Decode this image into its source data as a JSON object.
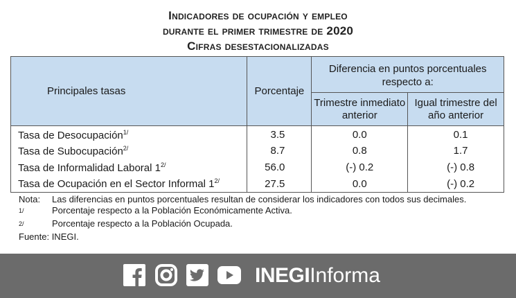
{
  "title": {
    "line1": "Indicadores de ocupación y empleo",
    "line2": "durante el primer trimestre de 2020",
    "line3": "Cifras desestacionalizadas"
  },
  "table": {
    "headers": {
      "tasas": "Principales tasas",
      "porcentaje": "Porcentaje",
      "diferencia": "Diferencia en puntos porcentuales respecto a:",
      "trimestre": "Trimestre inmediato anterior",
      "igual": "Igual trimestre del año anterior"
    },
    "rows": [
      {
        "name": "Tasa de Desocupación",
        "note": "1/",
        "pct": "3.5",
        "trim": "0.0",
        "igual": "0.1"
      },
      {
        "name": "Tasa de Subocupación",
        "note": "2/",
        "pct": "8.7",
        "trim": "0.8",
        "igual": "1.7"
      },
      {
        "name": "Tasa de Informalidad Laboral 1",
        "note": "2/",
        "pct": "56.0",
        "trim": "(-) 0.2",
        "igual": "(-) 0.8"
      },
      {
        "name": "Tasa de Ocupación en el Sector Informal 1",
        "note": "2/",
        "pct": "27.5",
        "trim": "0.0",
        "igual": "(-) 0.2"
      }
    ]
  },
  "notes": {
    "nota_label": "Nota:",
    "nota_text": "Las diferencias en puntos porcentuales resultan de considerar los indicadores con todos sus decimales.",
    "n1_key": "1/",
    "n1_text": "Porcentaje respecto a la Población Económicamente Activa.",
    "n2_key": "2/",
    "n2_text": "Porcentaje respecto a la Población Ocupada.",
    "fuente": "Fuente: INEGI."
  },
  "footer": {
    "icons": [
      "facebook-icon",
      "instagram-icon",
      "twitter-icon",
      "youtube-icon"
    ],
    "brand_bold": "INEGI",
    "brand_light": "Informa",
    "bg_color": "#6b6b6b"
  }
}
